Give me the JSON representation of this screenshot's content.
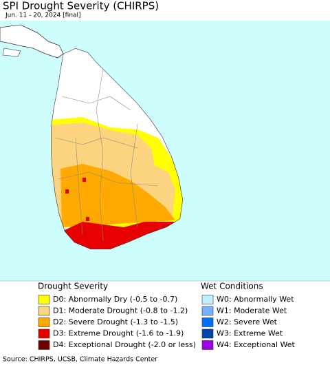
{
  "header": {
    "title": "SPI Drought Severity (CHIRPS)",
    "subtitle": "Jun. 11 - 20, 2024 [final]"
  },
  "legend": {
    "drought": {
      "title": "Drought Severity",
      "items": [
        {
          "label": "D0: Abnormally Dry (-0.5 to -0.7)",
          "color": "#ffff00"
        },
        {
          "label": "D1: Moderate Drought (-0.8 to -1.2)",
          "color": "#fcd37f"
        },
        {
          "label": "D2: Severe Drought (-1.3 to -1.5)",
          "color": "#ffaa00"
        },
        {
          "label": "D3: Extreme Drought (-1.6 to -1.9)",
          "color": "#e60000"
        },
        {
          "label": "D4: Exceptional Drought (-2.0 or less)",
          "color": "#730000"
        }
      ]
    },
    "wet": {
      "title": "Wet Conditions",
      "items": [
        {
          "label": "W0: Abnormally Wet",
          "color": "#bfeeff"
        },
        {
          "label": "W1: Moderate Wet",
          "color": "#73b2ff"
        },
        {
          "label": "W2: Severe Wet",
          "color": "#0070ff"
        },
        {
          "label": "W3: Extreme Wet",
          "color": "#0046aa"
        },
        {
          "label": "W4: Exceptional Wet",
          "color": "#a000e6"
        }
      ]
    }
  },
  "source": "Source: CHIRPS, UCSB, Climate Hazards Center"
}
